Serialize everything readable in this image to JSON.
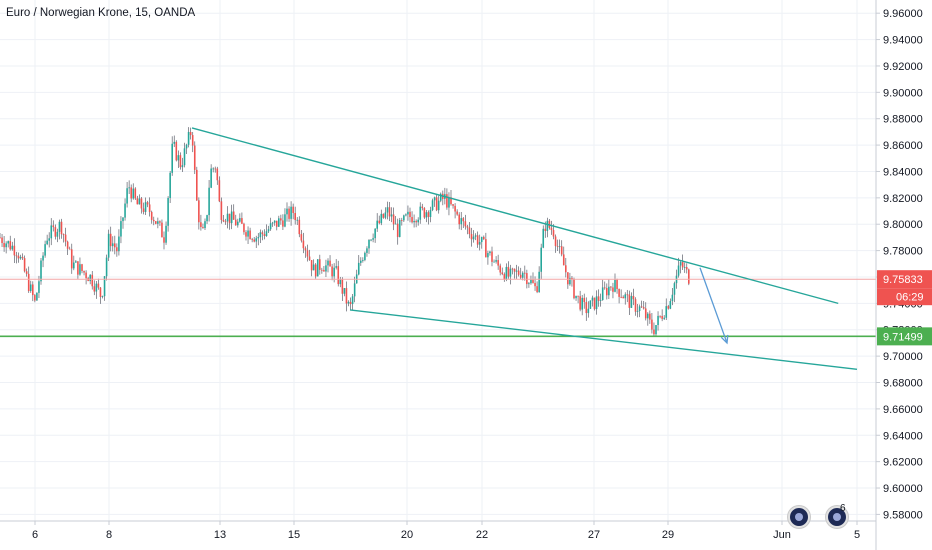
{
  "header": {
    "title": "Euro / Norwegian Krone, 15, OANDA"
  },
  "colors": {
    "up": "#26a69a",
    "down": "#ef5350",
    "wick": "#5d606b",
    "trendline": "#26a69a",
    "support": "#4caf50",
    "arrow": "#5b9bd5",
    "price_tag": "#ef5350",
    "support_tag": "#4caf50",
    "grid": "#eef1f6"
  },
  "icons": [
    {
      "name": "globe-icon"
    },
    {
      "name": "alert-icon",
      "badge": "6"
    }
  ],
  "chart_data": {
    "type": "candlestick",
    "title": "Euro / Norwegian Krone, 15, OANDA",
    "ylim": [
      9.575,
      9.97
    ],
    "y_ticks": [
      9.58,
      9.6,
      9.62,
      9.64,
      9.66,
      9.68,
      9.7,
      9.72,
      9.74,
      9.76,
      9.78,
      9.8,
      9.82,
      9.84,
      9.86,
      9.88,
      9.9,
      9.92,
      9.94,
      9.96
    ],
    "y_tick_labels": [
      "9.58000",
      "9.60000",
      "9.62000",
      "9.64000",
      "9.66000",
      "9.68000",
      "9.70000",
      "9.72000",
      "9.74000",
      "9.76000",
      "9.78000",
      "9.80000",
      "9.82000",
      "9.84000",
      "9.86000",
      "9.88000",
      "9.90000",
      "9.92000",
      "9.94000",
      "9.96000"
    ],
    "x_tick_labels": [
      "6",
      "8",
      "13",
      "15",
      "20",
      "22",
      "27",
      "29",
      "Jun",
      "5"
    ],
    "current_price": {
      "value": 9.75833,
      "label": "9.75833",
      "countdown": "06:29"
    },
    "horizontal_line": {
      "value": 9.71499,
      "label": "9.71499"
    },
    "price_path": [
      [
        "May 5",
        9.79
      ],
      [
        "May 5.5",
        9.78
      ],
      [
        "May 6",
        9.74
      ],
      [
        "May 6.3",
        9.79
      ],
      [
        "May 6.7",
        9.8
      ],
      [
        "May 7",
        9.77
      ],
      [
        "May 7.5",
        9.76
      ],
      [
        "May 7.8",
        9.745
      ],
      [
        "May 8",
        9.79
      ],
      [
        "May 8.3",
        9.78
      ],
      [
        "May 8.7",
        9.83
      ],
      [
        "May 9",
        9.815
      ],
      [
        "May 9.5",
        9.81
      ],
      [
        "May 10",
        9.79
      ],
      [
        "May 10.3",
        9.86
      ],
      [
        "May 10.6",
        9.845
      ],
      [
        "May 11",
        9.873
      ],
      [
        "May 11.3",
        9.82
      ],
      [
        "May 11.7",
        9.79
      ],
      [
        "May 12",
        9.8
      ],
      [
        "May 12.3",
        9.84
      ],
      [
        "May 12.7",
        9.845
      ],
      [
        "May 13",
        9.81
      ],
      [
        "May 13.5",
        9.8
      ],
      [
        "May 14",
        9.79
      ],
      [
        "May 14.5",
        9.8
      ],
      [
        "May 15",
        9.81
      ],
      [
        "May 15.3",
        9.79
      ],
      [
        "May 15.7",
        9.765
      ],
      [
        "May 16",
        9.77
      ],
      [
        "May 16.5",
        9.763
      ],
      [
        "May 17",
        9.735
      ],
      [
        "May 17.5",
        9.77
      ],
      [
        "May 18",
        9.79
      ],
      [
        "May 18.5",
        9.8
      ],
      [
        "May 19",
        9.81
      ],
      [
        "May 19.5",
        9.795
      ],
      [
        "May 20",
        9.805
      ],
      [
        "May 20.5",
        9.81
      ],
      [
        "May 21",
        9.82
      ],
      [
        "May 21.5",
        9.8
      ],
      [
        "May 22",
        9.785
      ],
      [
        "May 22.5",
        9.77
      ],
      [
        "May 23",
        9.76
      ],
      [
        "May 23.5",
        9.765
      ],
      [
        "May 24",
        9.75
      ],
      [
        "May 24.3",
        9.8
      ],
      [
        "May 24.7",
        9.795
      ],
      [
        "May 25",
        9.78
      ],
      [
        "May 25.5",
        9.76
      ],
      [
        "May 26",
        9.745
      ],
      [
        "May 26.5",
        9.735
      ],
      [
        "May 27",
        9.74
      ],
      [
        "May 27.5",
        9.755
      ],
      [
        "May 28",
        9.74
      ],
      [
        "May 28.3",
        9.735
      ],
      [
        "May 28.6",
        9.72
      ],
      [
        "May 29",
        9.74
      ],
      [
        "May 29.4",
        9.77
      ],
      [
        "May 29.7",
        9.758
      ]
    ],
    "annotations": {
      "upper_trendline": {
        "from": [
          "May 11",
          9.873
        ],
        "to": [
          "Jun 4",
          9.74
        ]
      },
      "lower_trendline": {
        "from": [
          "May 17",
          9.735
        ],
        "to": [
          "Jun 5",
          9.69
        ]
      },
      "arrow": {
        "from": [
          "May 30",
          9.767
        ],
        "to": [
          "May 31",
          9.71
        ]
      }
    }
  }
}
